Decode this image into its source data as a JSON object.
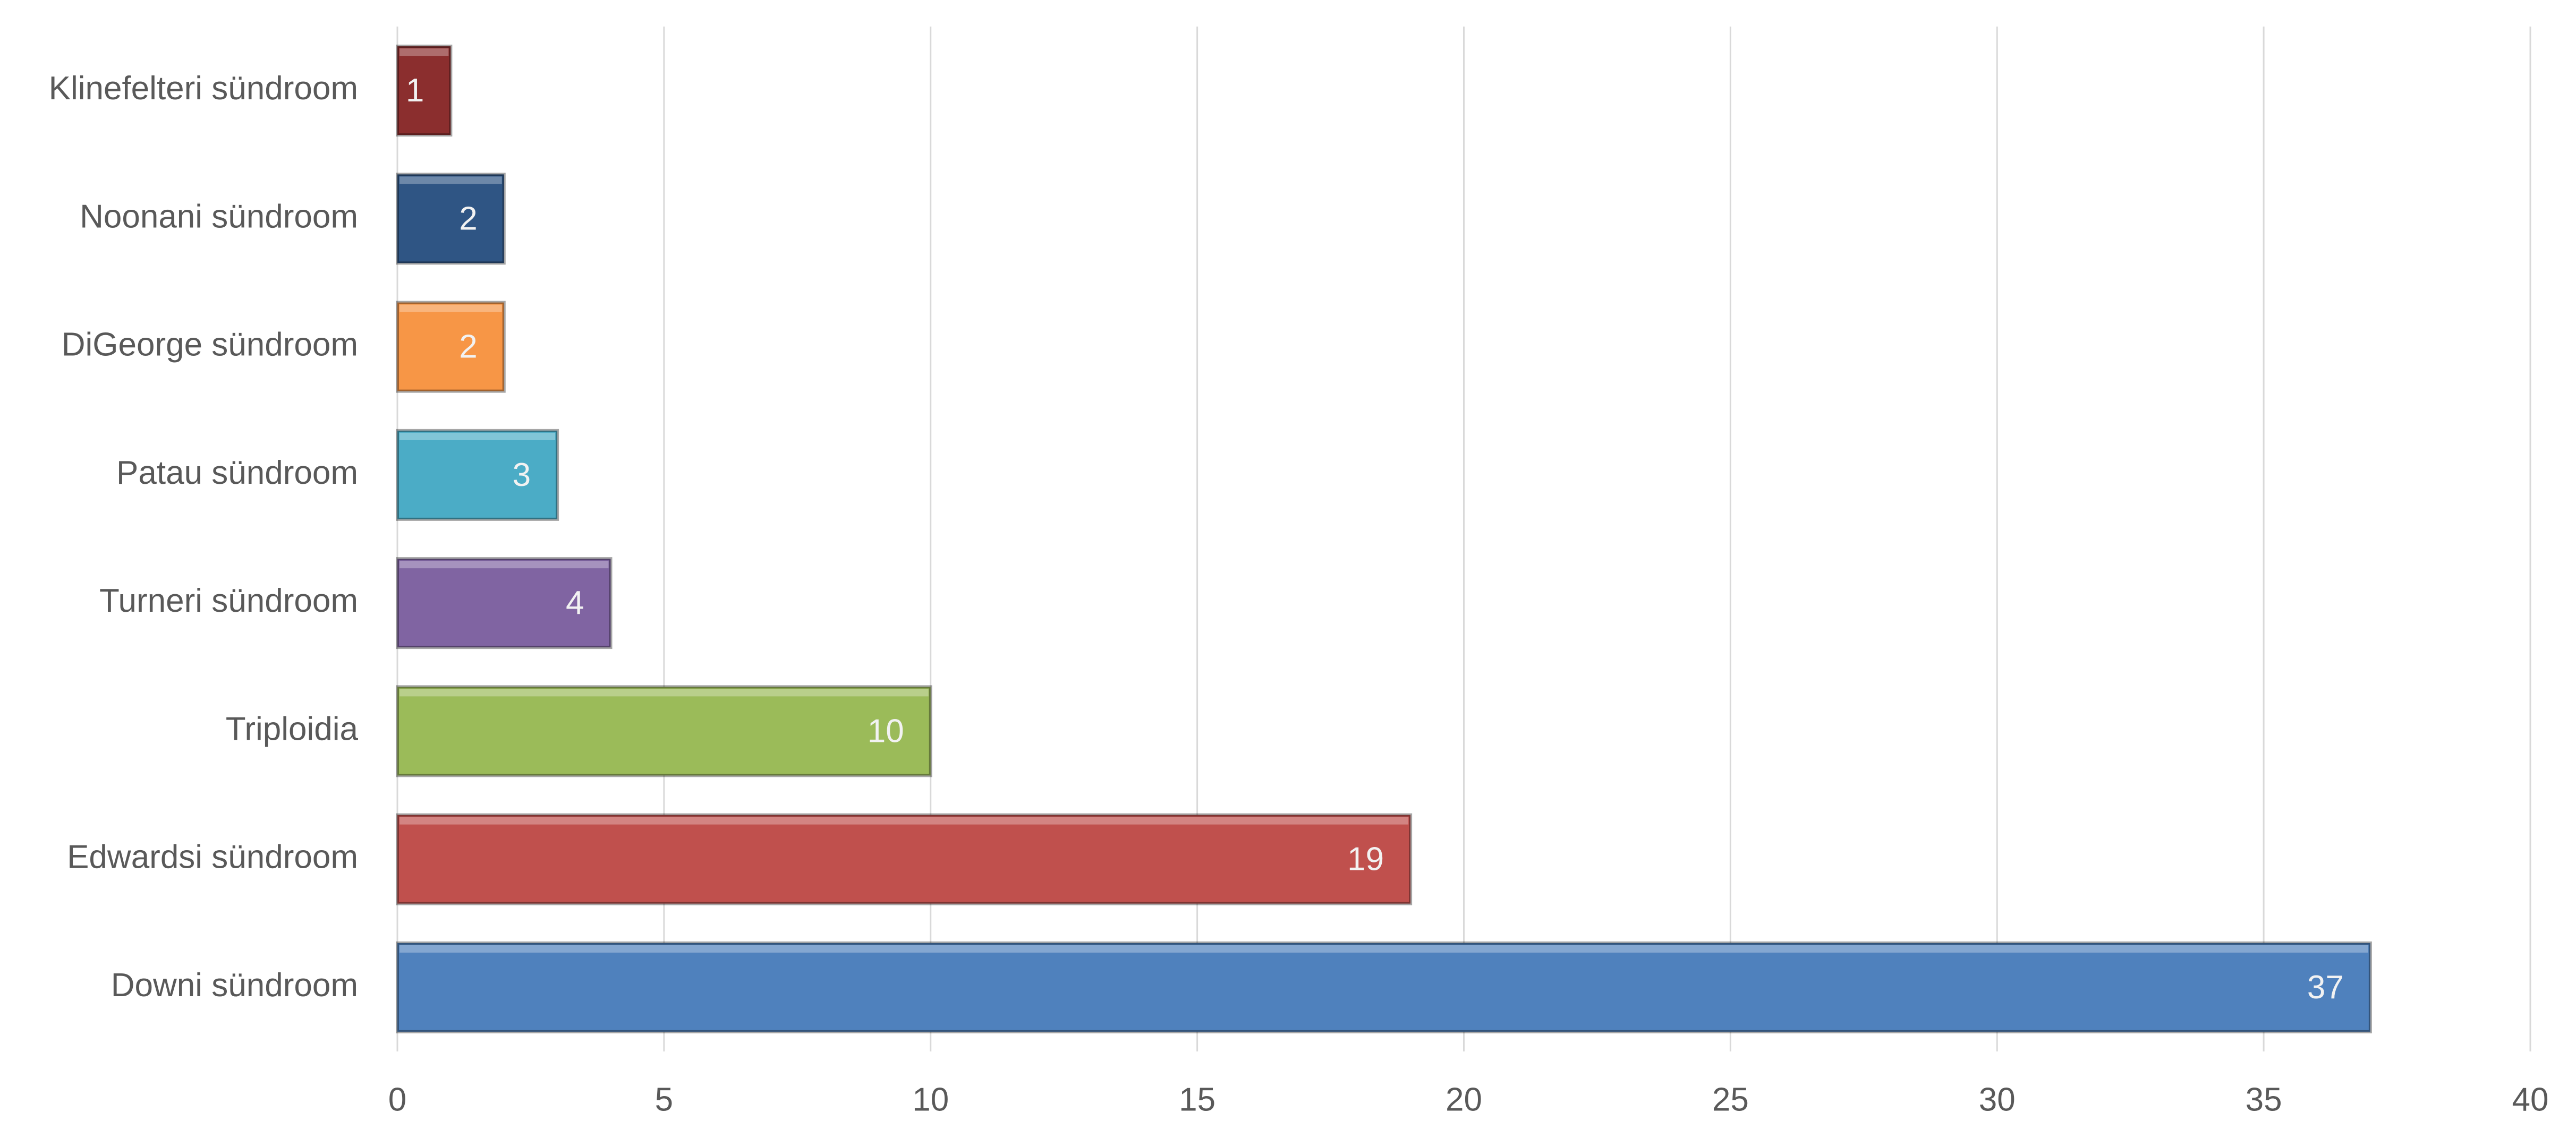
{
  "chart_data": {
    "type": "bar",
    "orientation": "horizontal",
    "categories": [
      "Klinefelteri sündroom",
      "Noonani sündroom",
      "DiGeorge sündroom",
      "Patau sündroom",
      "Turneri sündroom",
      "Triploidia",
      "Edwardsi sündroom",
      "Downi sündroom"
    ],
    "values": [
      1,
      2,
      2,
      3,
      4,
      10,
      19,
      37
    ],
    "colors": [
      "#8b2e2e",
      "#2f5584",
      "#f79646",
      "#4bacc6",
      "#8064a2",
      "#9bbb59",
      "#c0504d",
      "#4f81bd"
    ],
    "xlim": [
      0,
      40
    ],
    "xticks": [
      0,
      5,
      10,
      15,
      20,
      25,
      30,
      35,
      40
    ],
    "grid": true
  }
}
